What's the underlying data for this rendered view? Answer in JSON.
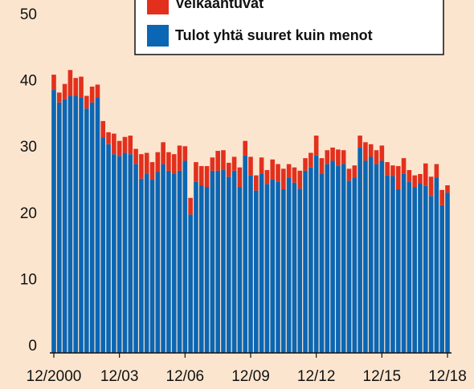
{
  "chart_data": {
    "type": "stacked_bar",
    "categories": [
      "12/2000",
      null,
      null,
      null,
      null,
      null,
      null,
      null,
      null,
      null,
      null,
      null,
      "12/03",
      null,
      null,
      null,
      null,
      null,
      null,
      null,
      null,
      null,
      null,
      null,
      "12/06",
      null,
      null,
      null,
      null,
      null,
      null,
      null,
      null,
      null,
      null,
      null,
      "12/09",
      null,
      null,
      null,
      null,
      null,
      null,
      null,
      null,
      null,
      null,
      null,
      "12/12",
      null,
      null,
      null,
      null,
      null,
      null,
      null,
      null,
      null,
      null,
      null,
      "12/15",
      null,
      null,
      null,
      null,
      null,
      null,
      null,
      null,
      null,
      null,
      null,
      "12/18"
    ],
    "series": [
      {
        "name": "Tulot yhtä suuret kuin menot",
        "color": "#0b66b3",
        "values": [
          39.7,
          37.8,
          38.3,
          38.8,
          38.8,
          38.6,
          36.9,
          37.8,
          38.5,
          32.5,
          31.5,
          30,
          29.7,
          30.2,
          30,
          28.5,
          26.3,
          27,
          26.2,
          27.3,
          28.5,
          27.5,
          27,
          27.5,
          29,
          20.9,
          25.8,
          25.3,
          25,
          27.5,
          27.5,
          27.6,
          26.6,
          27.5,
          25,
          29.8,
          26.8,
          24.5,
          27,
          25.5,
          26.2,
          25.8,
          24.7,
          26.5,
          25.7,
          24.8,
          27.5,
          28,
          29.8,
          27,
          28.5,
          29,
          28.3,
          28.5,
          26,
          26.5,
          31,
          29,
          29.6,
          28.5,
          29,
          26.8,
          26.7,
          24.7,
          27,
          25.8,
          25,
          25.6,
          25.2,
          23.7,
          26.5,
          22.3,
          24.2
        ]
      },
      {
        "name": "Velkaantuvat",
        "color": "#e2301d",
        "values": [
          2.3,
          1.5,
          2.3,
          3.9,
          2.7,
          3.1,
          1.9,
          2.4,
          2.0,
          2.5,
          1.8,
          3.1,
          2.3,
          2.4,
          2.8,
          2.3,
          3.7,
          3.2,
          2.6,
          3.0,
          3.3,
          2.8,
          3.0,
          3.8,
          2.2,
          2.5,
          3.0,
          2.9,
          3.2,
          2.0,
          3.0,
          3.0,
          2.1,
          2.1,
          3.0,
          2.2,
          2.8,
          2.3,
          2.5,
          2.1,
          3.0,
          2.7,
          3.1,
          2.0,
          2.3,
          2.7,
          1.9,
          2.2,
          3.0,
          2.4,
          2.1,
          2.0,
          2.4,
          2.1,
          1.8,
          1.8,
          1.8,
          2.8,
          1.9,
          2.1,
          2.3,
          2.0,
          1.6,
          3.5,
          2.4,
          1.8,
          1.8,
          1.4,
          3.4,
          2.9,
          2.0,
          2.3,
          1.1
        ]
      }
    ],
    "ylim": [
      0,
      50
    ],
    "yticks": [
      0,
      10,
      20,
      30,
      40,
      50
    ],
    "legend": "top-right"
  }
}
